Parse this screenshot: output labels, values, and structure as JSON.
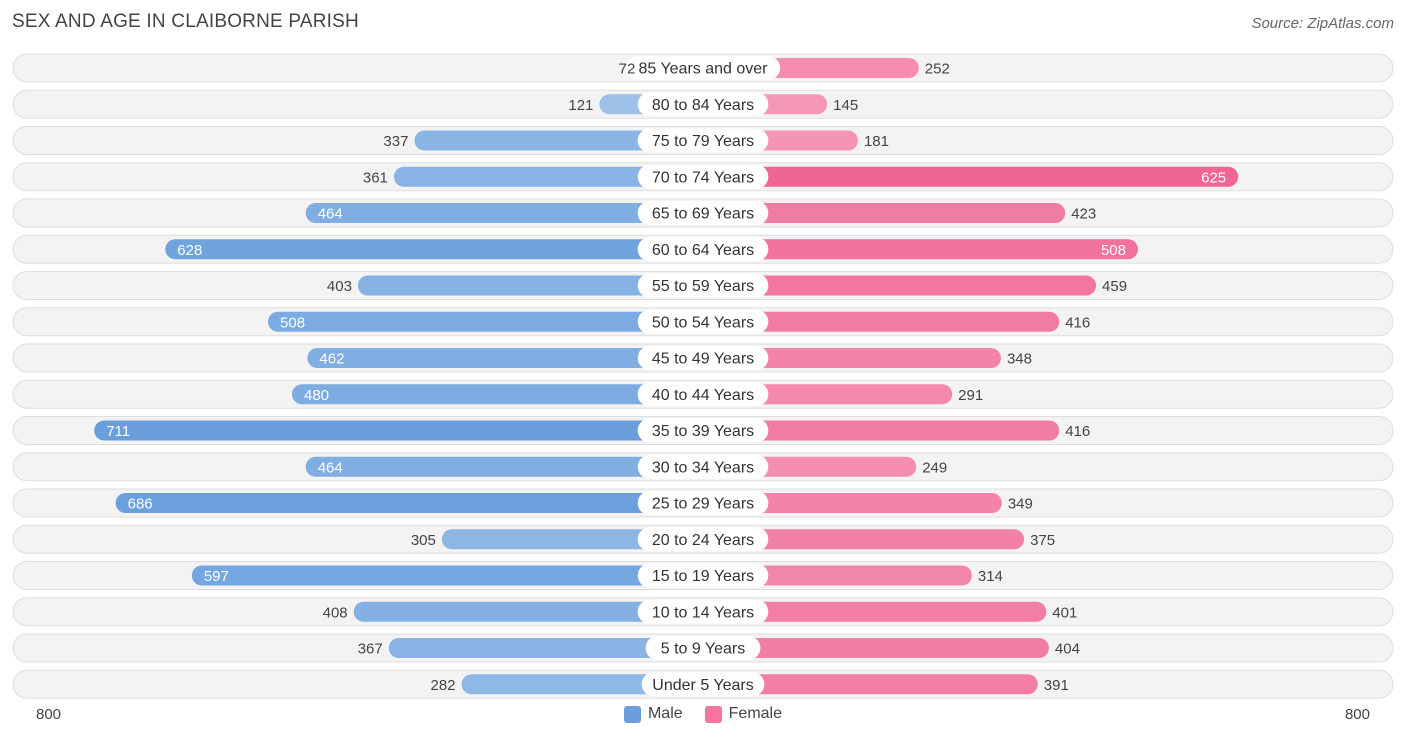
{
  "title": "SEX AND AGE IN CLAIBORNE PARISH",
  "source": "Source: ZipAtlas.com",
  "colors": {
    "male_light": "#a8c8ec",
    "male_dark": "#6a9fdc",
    "female_light": "#f7a8c4",
    "female_dark": "#f06592",
    "male_legend": "#6a9fdc",
    "female_legend": "#f4759f"
  },
  "legend": {
    "male": "Male",
    "female": "Female"
  },
  "axis": {
    "left": "800",
    "right": "800"
  },
  "chart_data": {
    "type": "bar",
    "orientation": "horizontal-diverging",
    "categories": [
      "85 Years and over",
      "80 to 84 Years",
      "75 to 79 Years",
      "70 to 74 Years",
      "65 to 69 Years",
      "60 to 64 Years",
      "55 to 59 Years",
      "50 to 54 Years",
      "45 to 49 Years",
      "40 to 44 Years",
      "35 to 39 Years",
      "30 to 34 Years",
      "25 to 29 Years",
      "20 to 24 Years",
      "15 to 19 Years",
      "10 to 14 Years",
      "5 to 9 Years",
      "Under 5 Years"
    ],
    "series": [
      {
        "name": "Male",
        "values": [
          72,
          121,
          337,
          361,
          464,
          628,
          403,
          508,
          462,
          480,
          711,
          464,
          686,
          305,
          597,
          408,
          367,
          282
        ]
      },
      {
        "name": "Female",
        "values": [
          252,
          145,
          181,
          625,
          423,
          508,
          459,
          416,
          348,
          291,
          416,
          249,
          349,
          375,
          314,
          401,
          404,
          391
        ]
      }
    ],
    "xlim": [
      -800,
      800
    ],
    "legend_position": "bottom-center"
  }
}
